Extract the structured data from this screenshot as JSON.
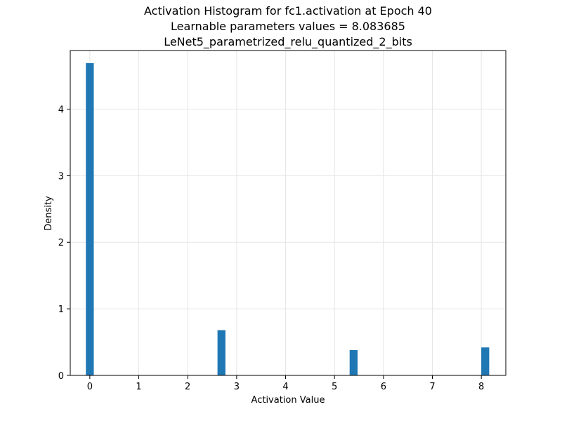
{
  "chart_data": {
    "type": "bar",
    "title_lines": [
      "Activation Histogram for fc1.activation at Epoch 40",
      "Learnable parameters values = 8.083685",
      "LeNet5_parametrized_relu_quantized_2_bits"
    ],
    "xlabel": "Activation Value",
    "ylabel": "Density",
    "xlim": [
      -0.4,
      8.5
    ],
    "ylim": [
      0,
      4.88
    ],
    "xticks": [
      0,
      1,
      2,
      3,
      4,
      5,
      6,
      7,
      8
    ],
    "yticks": [
      0,
      1,
      2,
      3,
      4
    ],
    "grid": true,
    "bar_width": 0.162,
    "bars": [
      {
        "x": 0.0,
        "value": 4.69
      },
      {
        "x": 2.69,
        "value": 0.68
      },
      {
        "x": 5.39,
        "value": 0.38
      },
      {
        "x": 8.08,
        "value": 0.42
      }
    ],
    "bar_color": "#1f77b4"
  }
}
